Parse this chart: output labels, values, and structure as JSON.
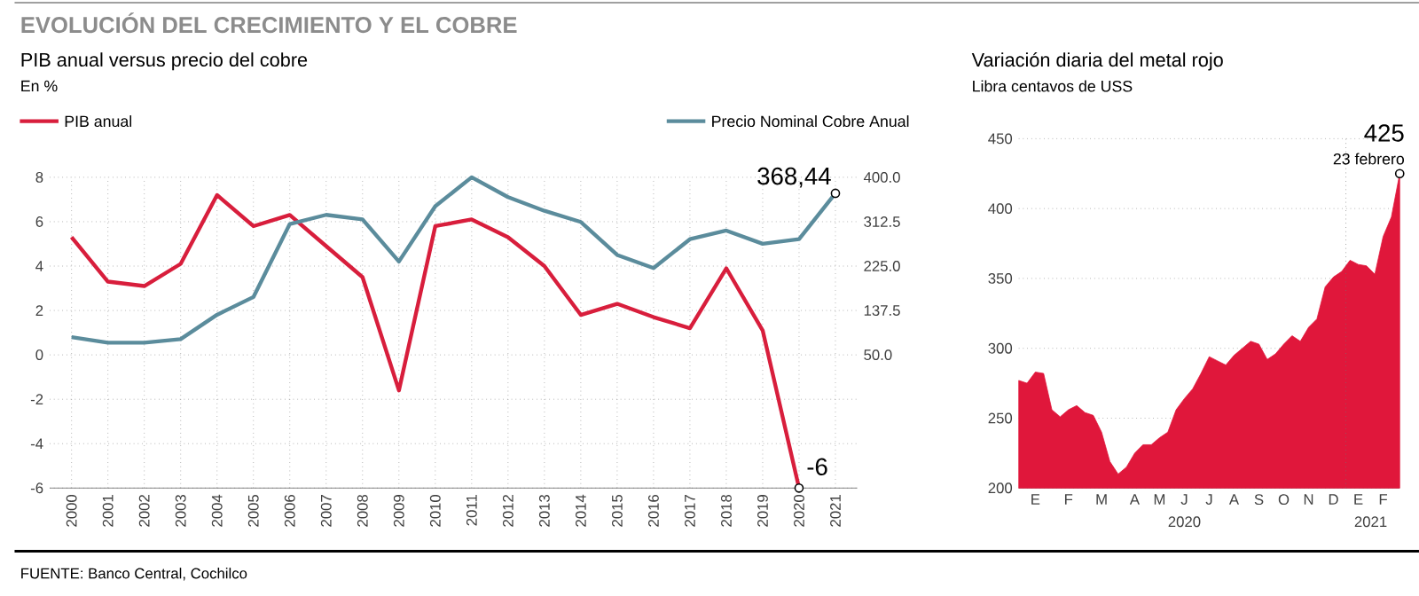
{
  "chart_data": [
    {
      "type": "line",
      "title": "EVOLUCIÓN DEL CRECIMIENTO Y EL COBRE",
      "subtitle": "PIB anual versus precio del cobre",
      "ylabel": "En %",
      "categories": [
        "2000",
        "2001",
        "2002",
        "2003",
        "2004",
        "2005",
        "2006",
        "2007",
        "2008",
        "2009",
        "2010",
        "2011",
        "2012",
        "2013",
        "2014",
        "2015",
        "2016",
        "2017",
        "2018",
        "2019",
        "2020",
        "2021"
      ],
      "series": [
        {
          "name": "PIB anual",
          "color": "#d81e3c",
          "values": [
            5.3,
            3.3,
            3.1,
            4.1,
            7.2,
            5.8,
            6.3,
            4.9,
            3.5,
            -1.6,
            5.8,
            6.1,
            5.3,
            4.0,
            1.8,
            2.3,
            1.7,
            1.2,
            3.9,
            1.1,
            -6,
            null
          ],
          "value_labels": [
            null,
            null,
            null,
            null,
            null,
            null,
            null,
            null,
            null,
            null,
            null,
            null,
            null,
            null,
            null,
            null,
            null,
            null,
            null,
            null,
            "-6",
            null
          ]
        },
        {
          "name": "Precio Nominal Cobre Anual",
          "color": "#5b8c9c",
          "axis": "y2",
          "values": [
            85,
            74,
            74,
            81,
            129,
            164,
            308,
            326,
            317,
            234,
            343,
            400,
            361,
            334,
            312,
            247,
            221,
            278,
            295,
            269,
            278,
            368.44
          ],
          "value_labels": [
            null,
            null,
            null,
            null,
            null,
            null,
            null,
            null,
            null,
            null,
            null,
            null,
            null,
            null,
            null,
            null,
            null,
            null,
            null,
            null,
            null,
            "368,44"
          ]
        }
      ],
      "ylim": [
        -6,
        8
      ],
      "yticks": [
        -6,
        -4,
        -2,
        0,
        2,
        4,
        6,
        8
      ],
      "y2lim": [
        -212.5,
        400
      ],
      "y2ticks": [
        {
          "value": 50,
          "label": "50.0"
        },
        137.5,
        {
          "value": 225,
          "label": "225.0"
        },
        312.5,
        {
          "value": 400,
          "label": "400.0"
        }
      ],
      "grid": true,
      "legend": "top",
      "line_style": "solid",
      "annotations": [
        "FUENTE: Banco Central, Cochilco"
      ]
    },
    {
      "type": "area",
      "title": "Variación diaria del metal rojo",
      "ylabel": "Libra centavos de USS",
      "color": "#e0173b",
      "categories": [
        null,
        null,
        "E",
        null,
        null,
        null,
        "F",
        null,
        null,
        null,
        "M",
        null,
        null,
        null,
        "A",
        null,
        null,
        "M",
        null,
        null,
        "J",
        null,
        null,
        "J",
        null,
        null,
        "A",
        null,
        null,
        "S",
        null,
        null,
        "O",
        null,
        null,
        "N",
        null,
        null,
        "D",
        null,
        null,
        "E",
        null,
        null,
        "F",
        null,
        null
      ],
      "values": [
        277,
        275,
        283,
        282,
        256,
        251,
        256,
        259,
        254,
        252,
        240,
        219,
        210,
        215,
        225,
        231,
        231,
        236,
        240,
        256,
        264,
        271,
        282,
        294,
        291,
        288,
        295,
        300,
        305,
        303,
        292,
        296,
        303,
        309,
        305,
        315,
        321,
        344,
        351,
        355,
        363,
        360,
        359,
        353,
        380,
        394,
        425
      ],
      "value_labels": [
        null,
        null,
        null,
        null,
        null,
        null,
        null,
        null,
        null,
        null,
        null,
        null,
        null,
        null,
        null,
        null,
        null,
        null,
        null,
        null,
        null,
        null,
        null,
        null,
        null,
        null,
        null,
        null,
        null,
        null,
        null,
        null,
        null,
        null,
        null,
        null,
        null,
        null,
        null,
        null,
        null,
        null,
        null,
        null,
        null,
        null,
        "425"
      ],
      "ylim": [
        200,
        450
      ],
      "yticks": [
        200,
        250,
        300,
        350,
        400,
        450
      ],
      "grid": "y",
      "annotations": [
        "2020",
        "2021",
        "23 febrero"
      ]
    }
  ]
}
